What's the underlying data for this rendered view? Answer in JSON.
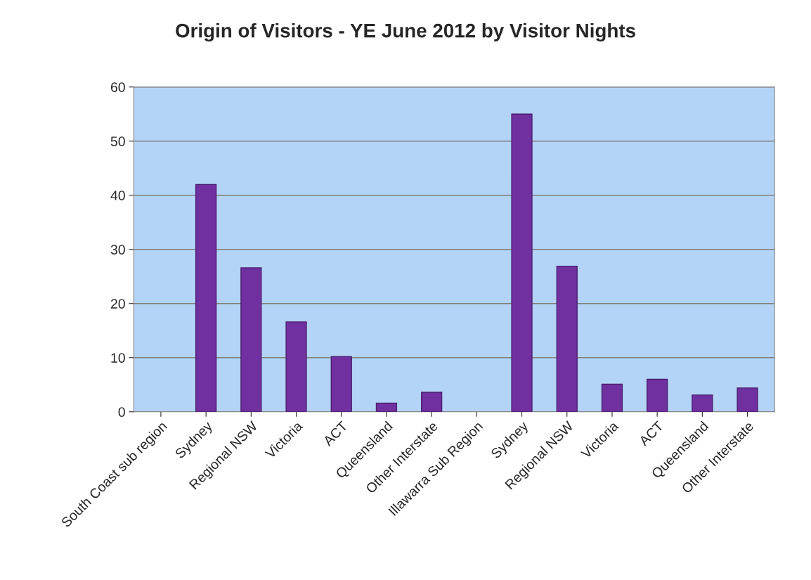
{
  "chart_data": {
    "type": "bar",
    "title": "Origin of Visitors - YE June 2012 by Visitor Nights",
    "categories": [
      "South Coast sub region",
      "Sydney",
      "Regional NSW",
      "Victoria",
      "ACT",
      "Queensland",
      "Other Interstate",
      "Illawarra Sub Region",
      "Sydney",
      "Regional NSW",
      "Victoria",
      "ACT",
      "Queensland",
      "Other Interstate"
    ],
    "values": [
      null,
      42,
      26.6,
      16.6,
      10.2,
      1.6,
      3.6,
      null,
      55,
      26.9,
      5.1,
      6,
      3.1,
      4.4
    ],
    "color": "#7030a0",
    "ylim": [
      0,
      60
    ],
    "yticks": [
      0,
      10,
      20,
      30,
      40,
      50,
      60
    ],
    "grid": "y"
  }
}
